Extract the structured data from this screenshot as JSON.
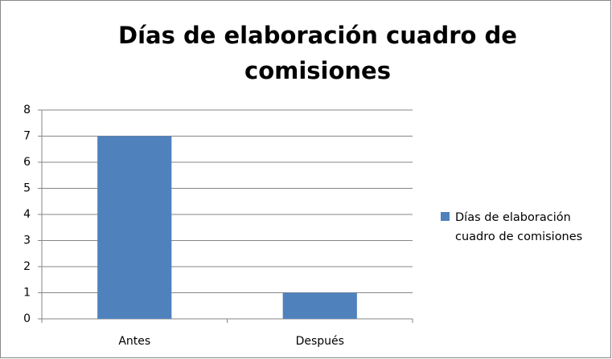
{
  "chart_data": {
    "type": "bar",
    "title": "Días de elaboración cuadro de comisiones",
    "categories": [
      "Antes",
      "Después"
    ],
    "series": [
      {
        "name": "Días de elaboración cuadro de comisiones",
        "color": "#4f81bd",
        "values": [
          7,
          1
        ]
      }
    ],
    "ylim": [
      0,
      8
    ],
    "yticks": [
      0,
      1,
      2,
      3,
      4,
      5,
      6,
      7,
      8
    ],
    "grid": true,
    "legend": "right"
  }
}
